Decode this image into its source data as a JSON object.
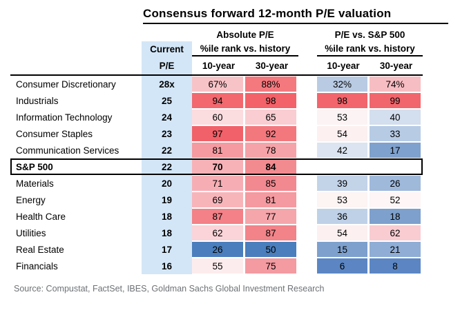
{
  "title": "Consensus forward 12-month P/E valuation",
  "source": "Source: Compustat, FactSet, IBES, Goldman Sachs Global Investment Research",
  "header": {
    "group_absolute": "Absolute P/E",
    "group_relative": "P/E vs. S&P 500",
    "current_line1": "Current",
    "current_line2": "P/E",
    "pct_rank_label": "%ile rank vs. history",
    "col_10yr": "10-year",
    "col_30yr": "30-year"
  },
  "colors": {
    "current_pe_bg": "#d3e6f7",
    "border_black": "#000000",
    "source_text": "#6d7175",
    "high_percentile_red": "#f26268",
    "low_percentile_blue": "#4a7ebc",
    "neutral_white": "#fdf4f4"
  },
  "rows": [
    {
      "sector": "Consumer Discretionary",
      "current_pe": "28x",
      "bold": false,
      "cells": [
        {
          "v": "67%",
          "bg": "#f8c3c7"
        },
        {
          "v": "88%",
          "bg": "#f3797f"
        },
        {
          "v": "32%",
          "bg": "#b9cbe3"
        },
        {
          "v": "74%",
          "bg": "#f6bdc2"
        }
      ]
    },
    {
      "sector": "Industrials",
      "current_pe": "25",
      "bold": false,
      "cells": [
        {
          "v": "94",
          "bg": "#f2686e"
        },
        {
          "v": "98",
          "bg": "#f26268"
        },
        {
          "v": "98",
          "bg": "#f2656c"
        },
        {
          "v": "99",
          "bg": "#f1666c"
        }
      ]
    },
    {
      "sector": "Information Technology",
      "current_pe": "24",
      "bold": false,
      "cells": [
        {
          "v": "60",
          "bg": "#fbdcdf"
        },
        {
          "v": "65",
          "bg": "#f9cdd1"
        },
        {
          "v": "53",
          "bg": "#fbf3f4"
        },
        {
          "v": "40",
          "bg": "#d3deee"
        }
      ]
    },
    {
      "sector": "Consumer Staples",
      "current_pe": "23",
      "bold": false,
      "cells": [
        {
          "v": "97",
          "bg": "#f16169"
        },
        {
          "v": "92",
          "bg": "#f3787e"
        },
        {
          "v": "54",
          "bg": "#fcf0f1"
        },
        {
          "v": "33",
          "bg": "#b7cbe4"
        }
      ]
    },
    {
      "sector": "Communication Services",
      "current_pe": "22",
      "bold": false,
      "cells": [
        {
          "v": "81",
          "bg": "#f59aa0"
        },
        {
          "v": "78",
          "bg": "#f5a3a8"
        },
        {
          "v": "42",
          "bg": "#dbe4f0"
        },
        {
          "v": "17",
          "bg": "#7fa1cd"
        }
      ]
    },
    {
      "sector": "S&P 500",
      "current_pe": "22",
      "bold": true,
      "cells": [
        {
          "v": "70",
          "bg": "#f7b2b7"
        },
        {
          "v": "84",
          "bg": "#f28b90"
        },
        {
          "v": "",
          "bg": ""
        },
        {
          "v": "",
          "bg": ""
        }
      ]
    },
    {
      "sector": "Materials",
      "current_pe": "20",
      "bold": false,
      "cells": [
        {
          "v": "71",
          "bg": "#f6aeb4"
        },
        {
          "v": "85",
          "bg": "#f28990"
        },
        {
          "v": "39",
          "bg": "#c3d3e8"
        },
        {
          "v": "26",
          "bg": "#9fb9db"
        }
      ]
    },
    {
      "sector": "Energy",
      "current_pe": "19",
      "bold": false,
      "cells": [
        {
          "v": "69",
          "bg": "#f7b5ba"
        },
        {
          "v": "81",
          "bg": "#f49aa0"
        },
        {
          "v": "53",
          "bg": "#fdf4f4"
        },
        {
          "v": "52",
          "bg": "#fdf5f6"
        }
      ]
    },
    {
      "sector": "Health Care",
      "current_pe": "18",
      "bold": false,
      "cells": [
        {
          "v": "87",
          "bg": "#f38187"
        },
        {
          "v": "77",
          "bg": "#f5a6ab"
        },
        {
          "v": "36",
          "bg": "#bfd1e7"
        },
        {
          "v": "18",
          "bg": "#7da0cd"
        }
      ]
    },
    {
      "sector": "Utilities",
      "current_pe": "18",
      "bold": false,
      "cells": [
        {
          "v": "62",
          "bg": "#fad4d8"
        },
        {
          "v": "87",
          "bg": "#f28389"
        },
        {
          "v": "54",
          "bg": "#fcf0f0"
        },
        {
          "v": "62",
          "bg": "#f8ccd1"
        }
      ]
    },
    {
      "sector": "Real Estate",
      "current_pe": "17",
      "bold": false,
      "cells": [
        {
          "v": "26",
          "bg": "#4a7ebc"
        },
        {
          "v": "50",
          "bg": "#4a7ebc"
        },
        {
          "v": "15",
          "bg": "#7da0cd"
        },
        {
          "v": "21",
          "bg": "#8fadd5"
        }
      ]
    },
    {
      "sector": "Financials",
      "current_pe": "16",
      "bold": false,
      "cells": [
        {
          "v": "55",
          "bg": "#fdeced"
        },
        {
          "v": "75",
          "bg": "#f49aa1"
        },
        {
          "v": "6",
          "bg": "#5b86c3"
        },
        {
          "v": "8",
          "bg": "#5b86c3"
        }
      ]
    }
  ],
  "chart_data": {
    "type": "heatmap",
    "title": "Consensus forward 12-month P/E valuation",
    "row_labels": [
      "Consumer Discretionary",
      "Industrials",
      "Information Technology",
      "Consumer Staples",
      "Communication Services",
      "S&P 500",
      "Materials",
      "Energy",
      "Health Care",
      "Utilities",
      "Real Estate",
      "Financials"
    ],
    "columns": [
      "Current P/E",
      "Absolute P/E %ile rank vs. history 10-year",
      "Absolute P/E %ile rank vs. history 30-year",
      "P/E vs. S&P 500 %ile rank vs. history 10-year",
      "P/E vs. S&P 500 %ile rank vs. history 30-year"
    ],
    "values": [
      [
        28,
        67,
        88,
        32,
        74
      ],
      [
        25,
        94,
        98,
        98,
        99
      ],
      [
        24,
        60,
        65,
        53,
        40
      ],
      [
        23,
        97,
        92,
        54,
        33
      ],
      [
        22,
        81,
        78,
        42,
        17
      ],
      [
        22,
        70,
        84,
        null,
        null
      ],
      [
        20,
        71,
        85,
        39,
        26
      ],
      [
        19,
        69,
        81,
        53,
        52
      ],
      [
        18,
        87,
        77,
        36,
        18
      ],
      [
        18,
        62,
        87,
        54,
        62
      ],
      [
        17,
        26,
        50,
        15,
        21
      ],
      [
        16,
        55,
        75,
        6,
        8
      ]
    ],
    "legend": "red = high percentile vs. history, blue = low percentile vs. history, white = ~50th",
    "highlighted_row": "S&P 500"
  }
}
